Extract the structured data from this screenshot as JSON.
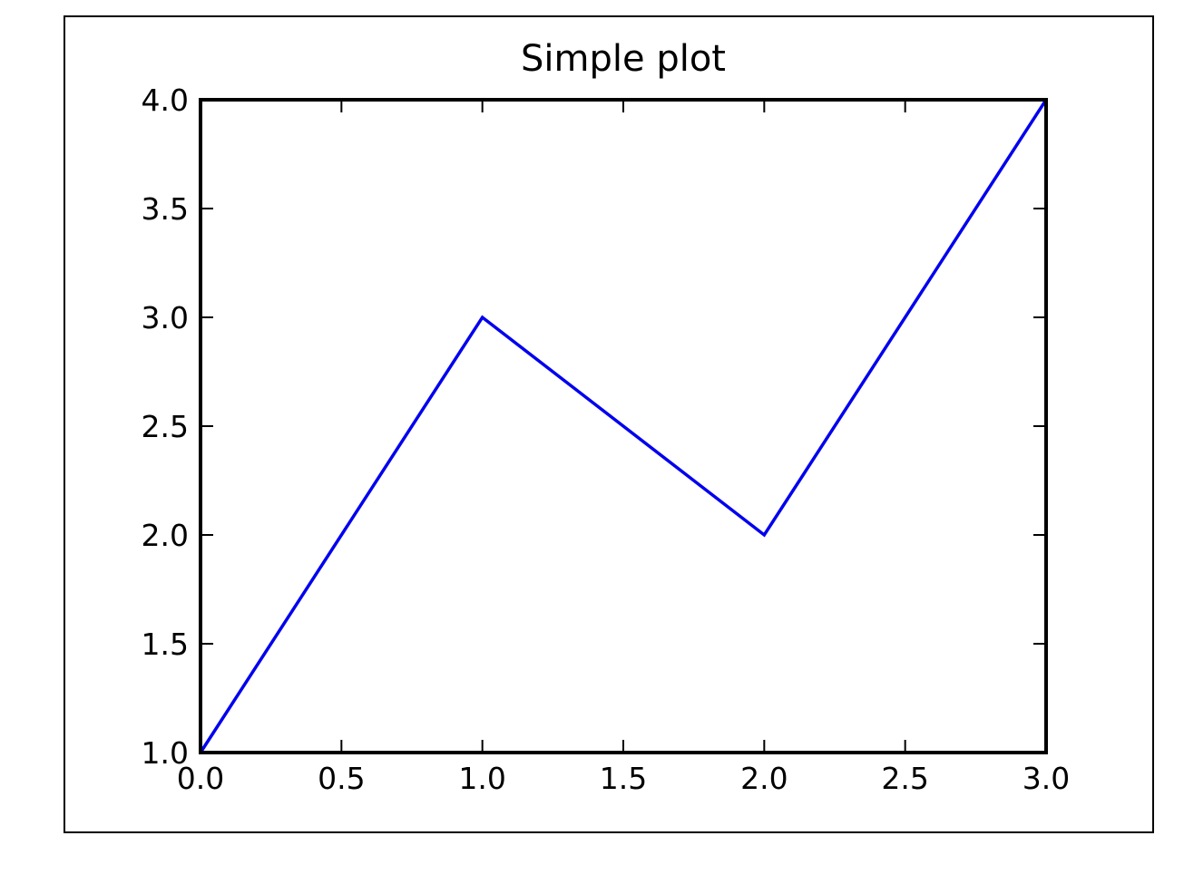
{
  "chart_data": {
    "type": "line",
    "title": "Simple plot",
    "xlabel": "",
    "ylabel": "",
    "xlim": [
      0.0,
      3.0
    ],
    "ylim": [
      1.0,
      4.0
    ],
    "xticks": [
      "0.0",
      "0.5",
      "1.0",
      "1.5",
      "2.0",
      "2.5",
      "3.0"
    ],
    "yticks": [
      "1.0",
      "1.5",
      "2.0",
      "2.5",
      "3.0",
      "3.5",
      "4.0"
    ],
    "grid": false,
    "legend": null,
    "series": [
      {
        "color": "#0000ee",
        "x": [
          0,
          1,
          2,
          3
        ],
        "y": [
          1,
          3,
          2,
          4
        ]
      }
    ]
  }
}
